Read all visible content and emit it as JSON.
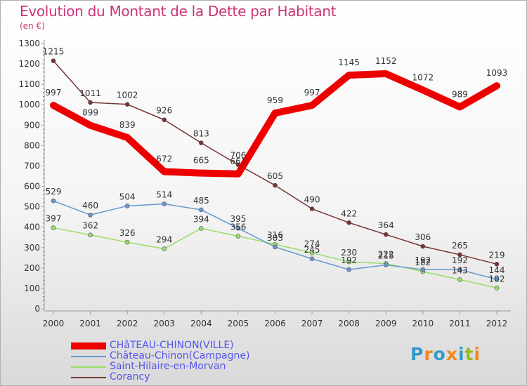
{
  "title": "Evolution du Montant de la Dette par Habitant",
  "subtitle": "(en €)",
  "logo_text": "Proxiti",
  "chart_data": {
    "type": "line",
    "x": [
      2000,
      2001,
      2002,
      2003,
      2004,
      2005,
      2006,
      2007,
      2008,
      2009,
      2010,
      2011,
      2012
    ],
    "ylim": [
      0,
      1300
    ],
    "yticks": [
      0,
      100,
      200,
      300,
      400,
      500,
      600,
      700,
      800,
      900,
      1000,
      1100,
      1200,
      1300
    ],
    "xlabel": "",
    "ylabel": "",
    "grid": false,
    "legend_position": "bottom-left",
    "series": [
      {
        "name": "CHâTEAU-CHINON(VILLE)",
        "color": "#ee0000",
        "values": [
          997,
          899,
          839,
          672,
          665,
          661,
          959,
          997,
          1145,
          1152,
          1072,
          989,
          1093
        ]
      },
      {
        "name": "Château-Chinon(Campagne)",
        "color": "#6699cc",
        "values": [
          529,
          460,
          504,
          514,
          485,
          395,
          303,
          245,
          192,
          215,
          192,
          192,
          144
        ]
      },
      {
        "name": "Saint-Hilaire-en-Morvan",
        "color": "#99dd66",
        "values": [
          397,
          362,
          326,
          294,
          394,
          356,
          316,
          274,
          230,
          222,
          182,
          143,
          102
        ]
      },
      {
        "name": "Corancy",
        "color": "#773333",
        "values": [
          1215,
          1011,
          1002,
          926,
          813,
          706,
          605,
          490,
          422,
          364,
          306,
          265,
          219
        ]
      }
    ]
  }
}
